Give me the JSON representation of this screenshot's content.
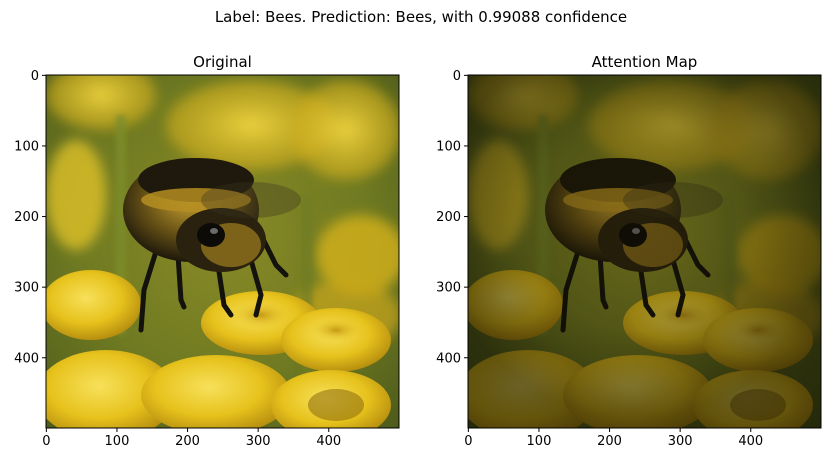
{
  "figure": {
    "suptitle": "Label: Bees. Prediction: Bees, with 0.99088 confidence"
  },
  "panels": [
    {
      "title": "Original",
      "image": "bumblebee on yellow tansy flowers",
      "xticks": [
        "0",
        "100",
        "200",
        "300",
        "400"
      ],
      "yticks": [
        "0",
        "100",
        "200",
        "300",
        "400"
      ]
    },
    {
      "title": "Attention Map",
      "image": "bumblebee on yellow tansy flowers with attention overlay (darkened background)",
      "xticks": [
        "0",
        "100",
        "200",
        "300",
        "400"
      ],
      "yticks": [
        "0",
        "100",
        "200",
        "300",
        "400"
      ]
    }
  ],
  "colors": {
    "flower_yellow": "#e8c21a",
    "bee_dark": "#14120c",
    "bee_fur": "#b08a1c",
    "stem_green": "#7f8a2a"
  }
}
